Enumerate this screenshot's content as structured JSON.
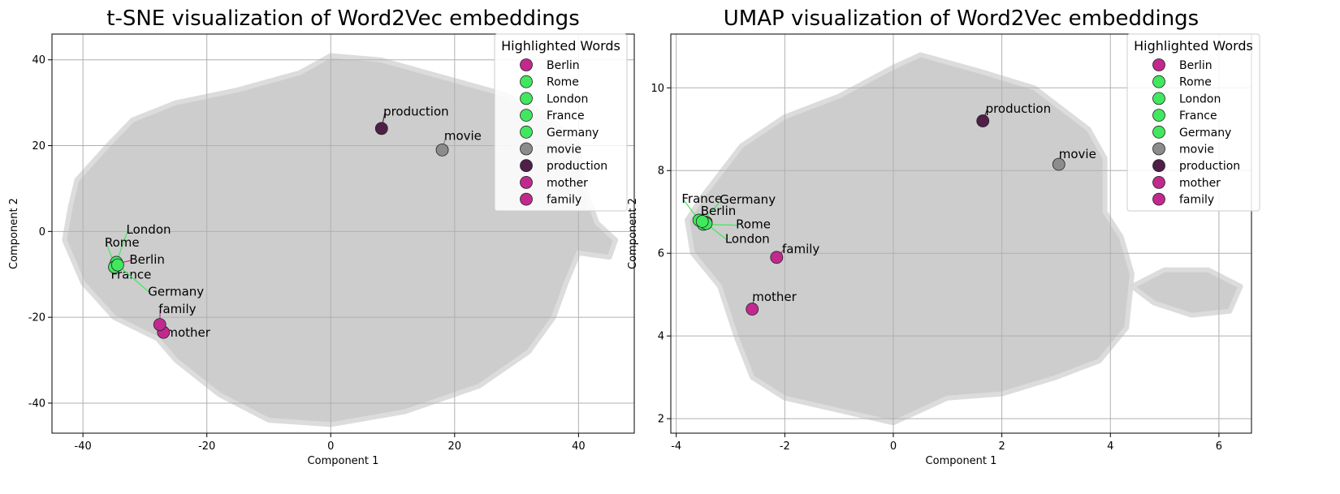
{
  "chart_data": [
    {
      "type": "scatter",
      "id": "tsne",
      "title": "t-SNE visualization of Word2Vec embeddings",
      "xlabel": "Component 1",
      "ylabel": "Component 2",
      "xlim": [
        -45,
        49
      ],
      "ylim": [
        -47,
        46
      ],
      "xticks": [
        -40,
        -20,
        0,
        20,
        40
      ],
      "yticks": [
        -40,
        -20,
        0,
        20,
        40
      ],
      "grid": true,
      "legend_title": "Highlighted Words",
      "legend_position": "top-right",
      "background_cloud": {
        "color": "#c8c8c8",
        "polygon": [
          [
            -41,
            12
          ],
          [
            -36,
            20
          ],
          [
            -32,
            26
          ],
          [
            -25,
            30
          ],
          [
            -15,
            33
          ],
          [
            -5,
            37
          ],
          [
            0,
            41
          ],
          [
            8,
            40
          ],
          [
            18,
            36
          ],
          [
            28,
            32
          ],
          [
            35,
            27
          ],
          [
            40,
            20
          ],
          [
            41,
            10
          ],
          [
            43,
            2
          ],
          [
            46,
            -2
          ],
          [
            45,
            -6
          ],
          [
            40,
            -5
          ],
          [
            38,
            -12
          ],
          [
            36,
            -20
          ],
          [
            32,
            -28
          ],
          [
            24,
            -36
          ],
          [
            12,
            -42
          ],
          [
            0,
            -45
          ],
          [
            -10,
            -44
          ],
          [
            -18,
            -38
          ],
          [
            -25,
            -30
          ],
          [
            -28,
            -25
          ],
          [
            -35,
            -20
          ],
          [
            -40,
            -12
          ],
          [
            -43,
            -2
          ],
          [
            -42,
            6
          ]
        ]
      },
      "series": [
        {
          "name": "Berlin",
          "color": "#c2298f",
          "x": -34.5,
          "y": -7.5
        },
        {
          "name": "Rome",
          "color": "#41e85e",
          "x": -34.8,
          "y": -8.0
        },
        {
          "name": "London",
          "color": "#41e85e",
          "x": -34.6,
          "y": -7.2
        },
        {
          "name": "France",
          "color": "#41e85e",
          "x": -34.9,
          "y": -8.3
        },
        {
          "name": "Germany",
          "color": "#41e85e",
          "x": -34.4,
          "y": -7.8
        },
        {
          "name": "movie",
          "color": "#8c8c8c",
          "x": 18,
          "y": 19
        },
        {
          "name": "production",
          "color": "#4f1f47",
          "x": 8.2,
          "y": 24
        },
        {
          "name": "mother",
          "color": "#c2298f",
          "x": -27,
          "y": -23.5
        },
        {
          "name": "family",
          "color": "#c2298f",
          "x": -27.6,
          "y": -21.7
        }
      ],
      "annotations": [
        {
          "text": "London",
          "word": "London",
          "x": -33,
          "y": -0.5
        },
        {
          "text": "Rome",
          "word": "Rome",
          "x": -36.5,
          "y": -3.5
        },
        {
          "text": "Berlin",
          "word": "Berlin",
          "x": -32.5,
          "y": -7.5
        },
        {
          "text": "France",
          "word": "France",
          "x": -35.5,
          "y": -11
        },
        {
          "text": "Germany",
          "word": "Germany",
          "x": -29.5,
          "y": -15
        },
        {
          "text": "production",
          "word": "production",
          "x": 8.5,
          "y": 27
        },
        {
          "text": "movie",
          "word": "movie",
          "x": 18.3,
          "y": 21.3
        },
        {
          "text": "family",
          "word": "family",
          "x": -27.8,
          "y": -19
        },
        {
          "text": "mother",
          "word": "mother",
          "x": -26.6,
          "y": -24.5
        }
      ]
    },
    {
      "type": "scatter",
      "id": "umap",
      "title": "UMAP visualization of Word2Vec embeddings",
      "xlabel": "Component 1",
      "ylabel": "Component 2",
      "xlim": [
        -4.1,
        6.6
      ],
      "ylim": [
        1.65,
        11.3
      ],
      "xticks": [
        -4,
        -2,
        0,
        2,
        4,
        6
      ],
      "yticks": [
        2,
        4,
        6,
        8,
        10
      ],
      "grid": true,
      "legend_title": "Highlighted Words",
      "legend_position": "top-right",
      "background_cloud": {
        "color": "#c8c8c8",
        "polygon": [
          [
            -3.5,
            7.4
          ],
          [
            -2.8,
            8.6
          ],
          [
            -2,
            9.3
          ],
          [
            -1,
            9.8
          ],
          [
            0,
            10.5
          ],
          [
            0.5,
            10.8
          ],
          [
            1.6,
            10.4
          ],
          [
            2.6,
            10
          ],
          [
            3.2,
            9.4
          ],
          [
            3.6,
            9
          ],
          [
            3.9,
            8.3
          ],
          [
            3.9,
            7
          ],
          [
            4.2,
            6.4
          ],
          [
            4.4,
            5.5
          ],
          [
            4.3,
            4.2
          ],
          [
            3.8,
            3.4
          ],
          [
            3,
            3
          ],
          [
            2,
            2.6
          ],
          [
            1,
            2.5
          ],
          [
            0,
            1.9
          ],
          [
            -1,
            2.2
          ],
          [
            -2,
            2.5
          ],
          [
            -2.6,
            3
          ],
          [
            -2.9,
            4
          ],
          [
            -3.2,
            5.2
          ],
          [
            -3.7,
            6
          ],
          [
            -3.8,
            6.8
          ]
        ]
      },
      "background_cloud_2": {
        "color": "#c8c8c8",
        "polygon": [
          [
            4.4,
            5.2
          ],
          [
            5,
            5.6
          ],
          [
            5.8,
            5.6
          ],
          [
            6.4,
            5.2
          ],
          [
            6.2,
            4.6
          ],
          [
            5.5,
            4.5
          ],
          [
            4.8,
            4.8
          ]
        ]
      },
      "series": [
        {
          "name": "Berlin",
          "color": "#c2298f",
          "x": -3.45,
          "y": 6.75
        },
        {
          "name": "Rome",
          "color": "#41e85e",
          "x": -3.5,
          "y": 6.7
        },
        {
          "name": "London",
          "color": "#41e85e",
          "x": -3.45,
          "y": 6.72
        },
        {
          "name": "France",
          "color": "#41e85e",
          "x": -3.58,
          "y": 6.8
        },
        {
          "name": "Germany",
          "color": "#41e85e",
          "x": -3.52,
          "y": 6.77
        },
        {
          "name": "movie",
          "color": "#8c8c8c",
          "x": 3.05,
          "y": 8.15
        },
        {
          "name": "production",
          "color": "#4f1f47",
          "x": 1.65,
          "y": 9.2
        },
        {
          "name": "mother",
          "color": "#c2298f",
          "x": -2.6,
          "y": 4.65
        },
        {
          "name": "family",
          "color": "#c2298f",
          "x": -2.15,
          "y": 5.9
        }
      ],
      "annotations": [
        {
          "text": "France",
          "word": "France",
          "x": -3.9,
          "y": 7.22
        },
        {
          "text": "Germany",
          "word": "Germany",
          "x": -3.2,
          "y": 7.2
        },
        {
          "text": "Berlin",
          "word": "Berlin",
          "x": -3.55,
          "y": 6.93
        },
        {
          "text": "Rome",
          "word": "Rome",
          "x": -2.9,
          "y": 6.6
        },
        {
          "text": "London",
          "word": "London",
          "x": -3.1,
          "y": 6.25
        },
        {
          "text": "production",
          "word": "production",
          "x": 1.7,
          "y": 9.4
        },
        {
          "text": "movie",
          "word": "movie",
          "x": 3.05,
          "y": 8.3
        },
        {
          "text": "family",
          "word": "family",
          "x": -2.05,
          "y": 6.0
        },
        {
          "text": "mother",
          "word": "mother",
          "x": -2.6,
          "y": 4.85
        }
      ]
    }
  ]
}
